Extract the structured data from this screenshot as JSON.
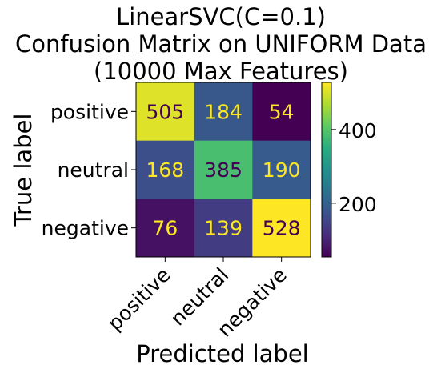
{
  "chart_data": {
    "type": "heatmap",
    "title": [
      "LinearSVC(C=0.1)",
      "Confusion Matrix on UNIFORM Data",
      "(10000 Max Features)"
    ],
    "xlabel": "Predicted label",
    "ylabel": "True label",
    "x_categories": [
      "positive",
      "neutral",
      "negative"
    ],
    "y_categories": [
      "positive",
      "neutral",
      "negative"
    ],
    "matrix": [
      [
        505,
        184,
        54
      ],
      [
        168,
        385,
        190
      ],
      [
        76,
        139,
        528
      ]
    ],
    "colormap": "viridis",
    "colorbar": {
      "min": 54,
      "max": 528,
      "ticks": [
        200,
        400
      ]
    },
    "text_colors": {
      "light_cell": "#440154",
      "dark_cell": "#fde725"
    }
  }
}
